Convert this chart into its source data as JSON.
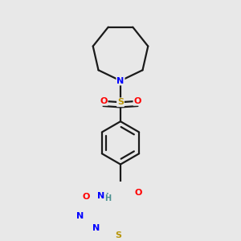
{
  "background_color": "#e8e8e8",
  "bond_color": "#1a1a1a",
  "atom_colors": {
    "N": "#0000ff",
    "O": "#ff0000",
    "S_sulfonyl": "#b8960a",
    "S_thio": "#b8960a",
    "H": "#4a9090",
    "C": "#1a1a1a"
  },
  "line_width": 1.6,
  "figsize": [
    3.0,
    3.0
  ],
  "dpi": 100
}
